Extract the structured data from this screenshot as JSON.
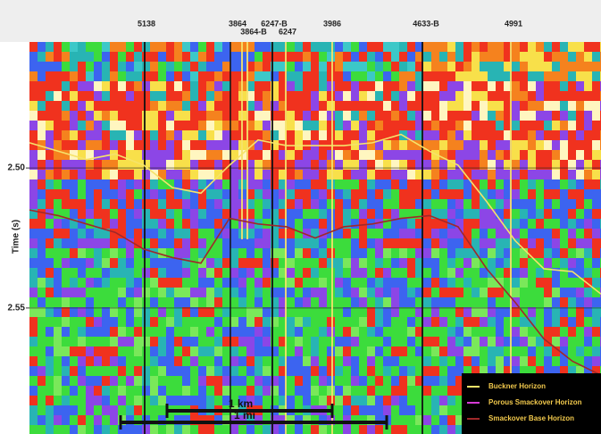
{
  "chart_data": {
    "type": "seismic",
    "y_label": "Time (s)",
    "ylim": [
      2.455,
      2.595
    ],
    "y_inverted": true,
    "yticks": [
      {
        "value": 2.5,
        "label": "2.50"
      },
      {
        "value": 2.55,
        "label": "2.55"
      }
    ],
    "wells": [
      "5138",
      "3864",
      "3864-B",
      "6247-B",
      "6247",
      "3986",
      "4633-B",
      "4991"
    ],
    "series": [
      {
        "name": "Buckner Horizon",
        "color": "#f5e36a",
        "values": [
          2.491,
          2.494,
          2.497,
          2.495,
          2.499,
          2.507,
          2.509,
          2.499,
          2.49,
          2.492,
          2.492,
          2.492,
          2.491,
          2.488,
          2.494,
          2.499,
          2.512,
          2.526,
          2.536,
          2.537,
          2.545
        ]
      },
      {
        "name": "Porous Smackover Horizon",
        "color": "#d63ad6",
        "values": [
          null,
          null,
          null,
          null,
          null,
          null,
          null,
          null,
          null,
          null,
          null,
          null,
          null,
          null,
          null,
          null,
          null,
          null,
          null,
          null,
          null
        ]
      },
      {
        "name": "Smackover Base Horizon",
        "color": "#a0282a",
        "values": [
          2.515,
          2.517,
          2.52,
          2.523,
          2.529,
          2.532,
          2.534,
          2.518,
          2.52,
          2.521,
          2.525,
          2.521,
          2.52,
          2.518,
          2.517,
          2.521,
          2.536,
          2.548,
          2.561,
          2.569,
          2.574
        ]
      }
    ],
    "scale_bars": [
      "1 km",
      "1 mi"
    ]
  }
}
